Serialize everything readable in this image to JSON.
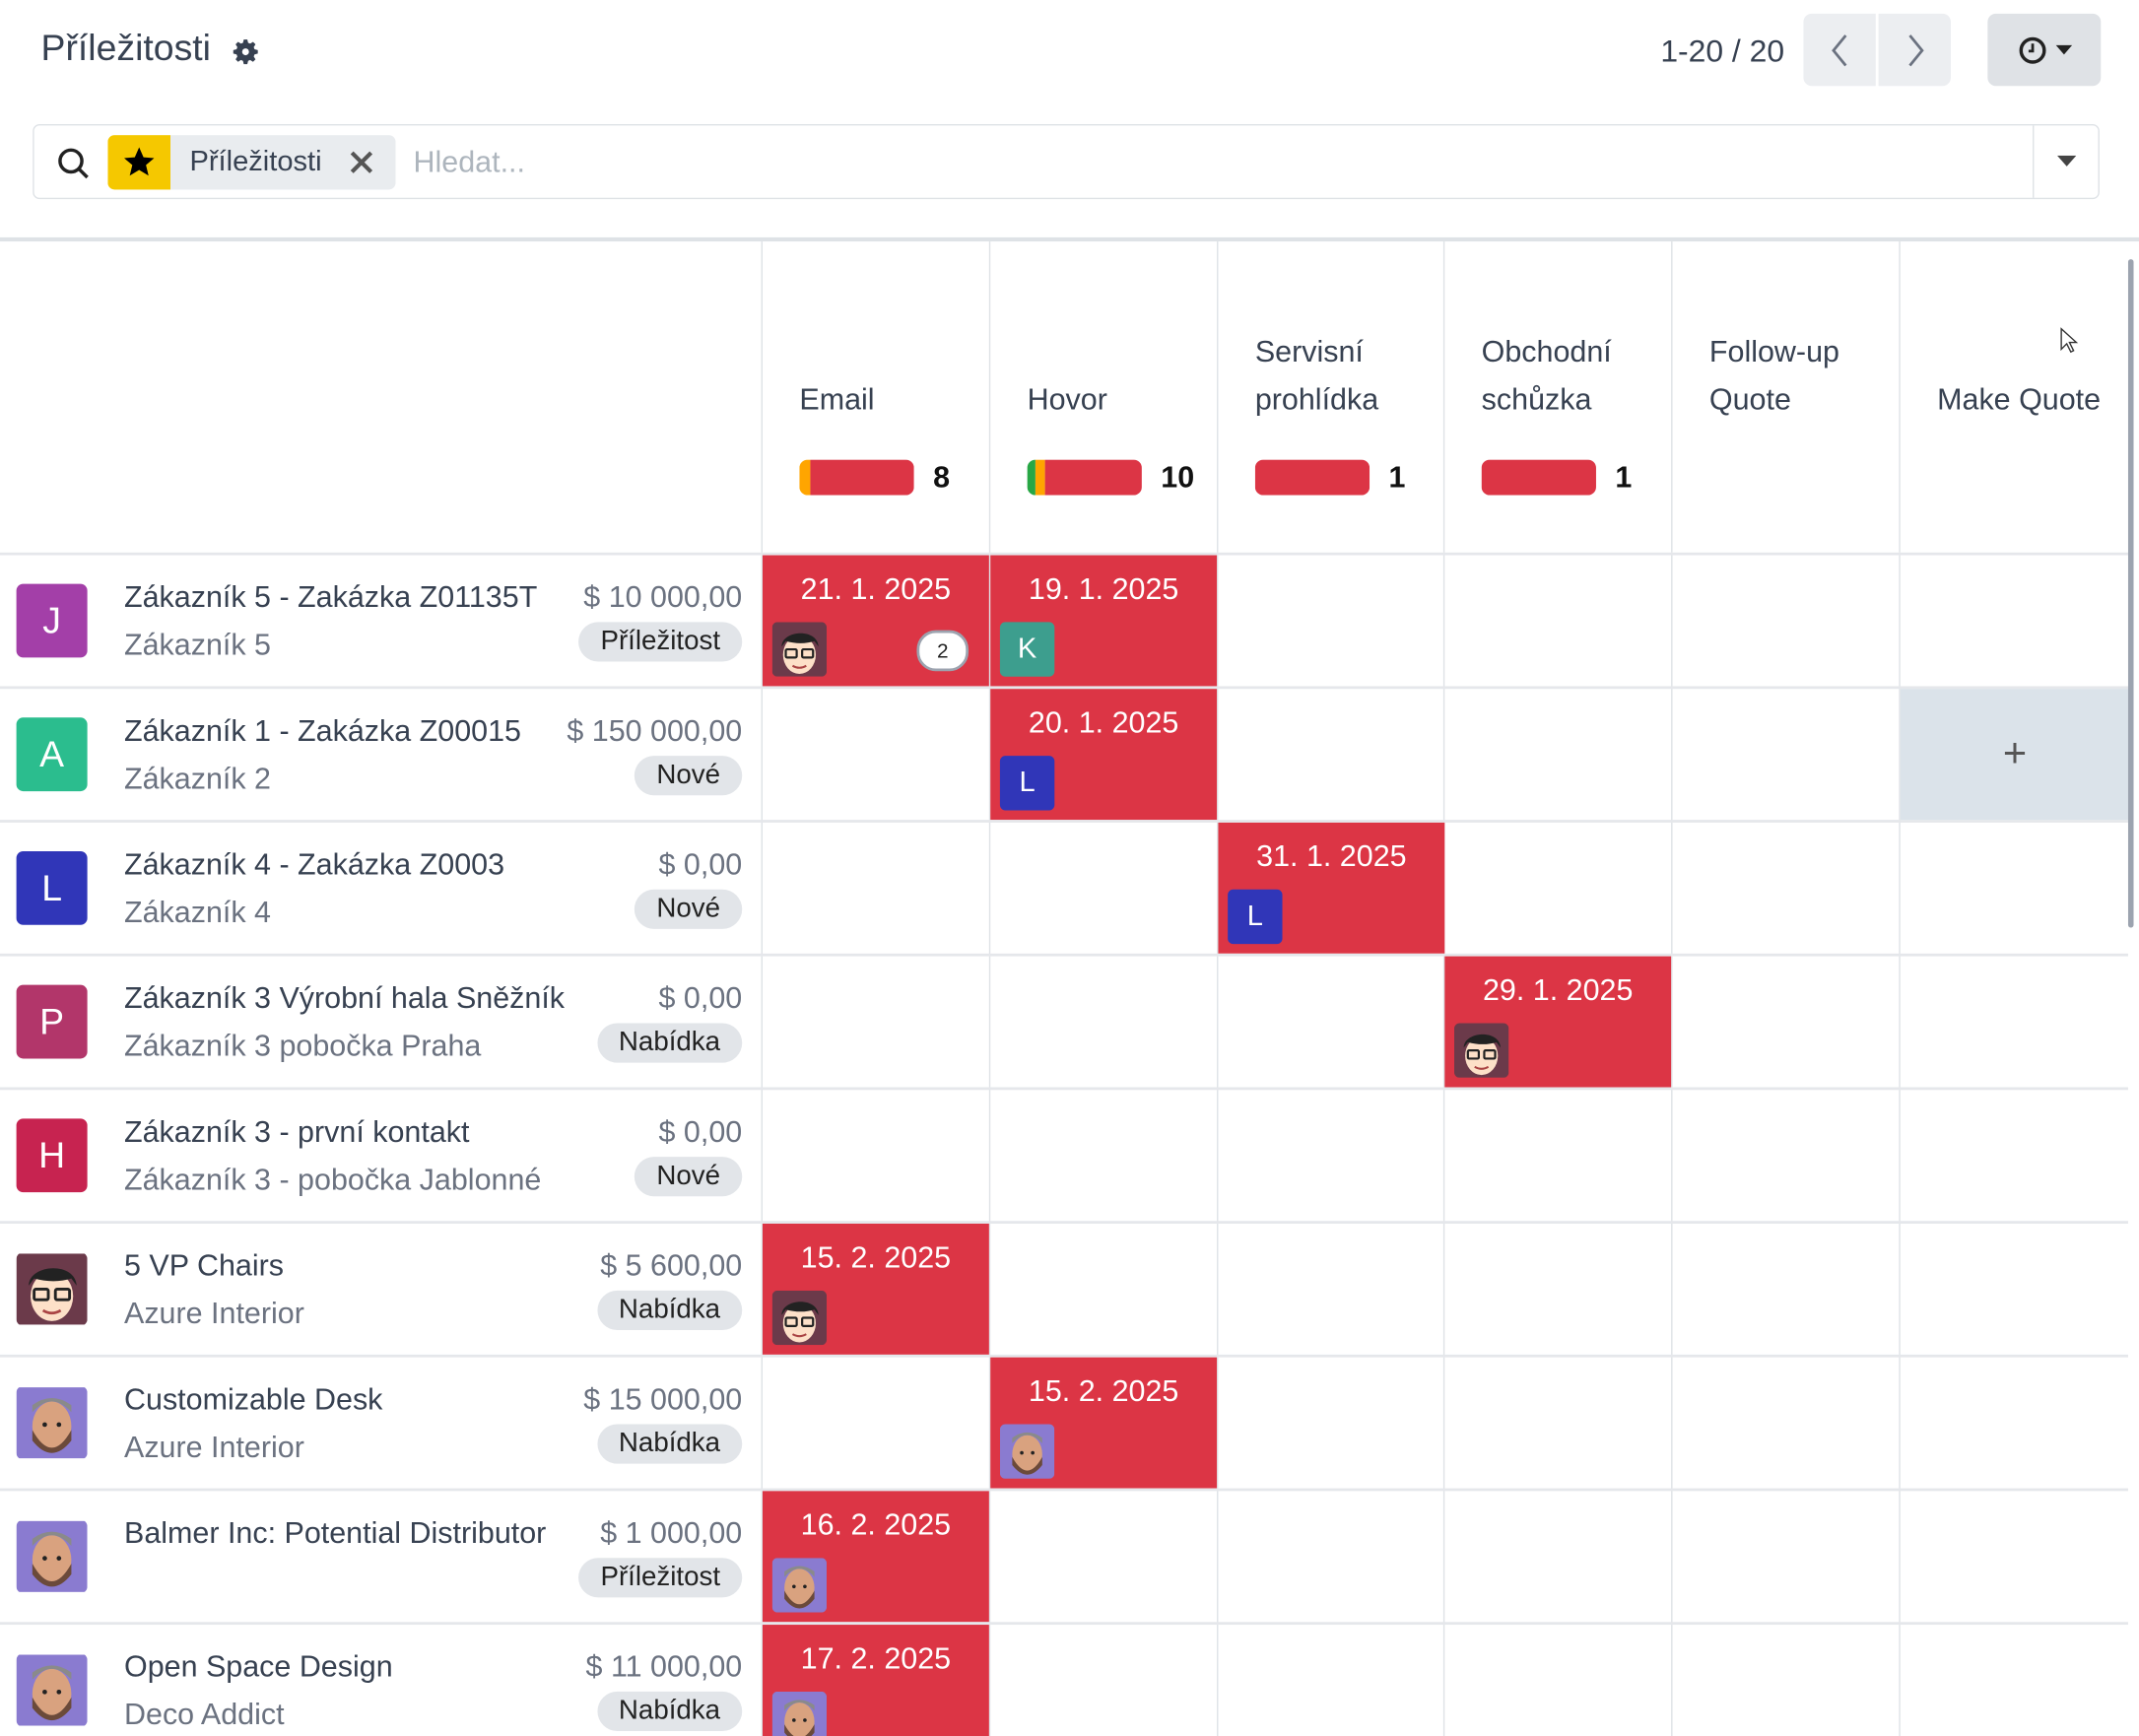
{
  "header": {
    "title": "Příležitosti",
    "pager": "1-20 / 20"
  },
  "search": {
    "facet_label": "Příležitosti",
    "placeholder": "Hledat..."
  },
  "columns": [
    {
      "label": "Email",
      "count": "8",
      "segments": [
        {
          "color": "#ffa500",
          "pct": 10
        },
        {
          "color": "#dc3545",
          "pct": 90
        }
      ]
    },
    {
      "label": "Hovor",
      "count": "10",
      "segments": [
        {
          "color": "#28a745",
          "pct": 7
        },
        {
          "color": "#ffa500",
          "pct": 8
        },
        {
          "color": "#dc3545",
          "pct": 85
        }
      ]
    },
    {
      "label": "Servisní prohlídka",
      "count": "1",
      "segments": [
        {
          "color": "#dc3545",
          "pct": 100
        }
      ]
    },
    {
      "label": "Obchodní schůzka",
      "count": "1",
      "segments": [
        {
          "color": "#dc3545",
          "pct": 100
        }
      ]
    },
    {
      "label": "Follow-up Quote",
      "count": "",
      "segments": []
    },
    {
      "label": "Make Quote",
      "count": "",
      "segments": []
    }
  ],
  "add_label": "+",
  "rows": [
    {
      "avatar": {
        "letter": "J",
        "color": "#a33fa8"
      },
      "name": "Zákazník 5 - Zakázka Z01135T",
      "sub": "Zákazník 5",
      "amount": "$ 10 000,00",
      "badge": "Příležitost",
      "cells": [
        {
          "col": 0,
          "date": "21. 1. 2025",
          "assignee": {
            "image": "glasses"
          },
          "count": "2"
        },
        {
          "col": 1,
          "date": "19. 1. 2025",
          "assignee": {
            "letter": "K",
            "color": "#3d9e8e"
          }
        }
      ]
    },
    {
      "avatar": {
        "letter": "A",
        "color": "#2bbd8e"
      },
      "name": "Zákazník 1 - Zakázka Z00015",
      "sub": "Zákazník 2",
      "amount": "$ 150 000,00",
      "badge": "Nové",
      "cells": [
        {
          "col": 1,
          "date": "20. 1. 2025",
          "assignee": {
            "letter": "L",
            "color": "#3036b8"
          }
        }
      ],
      "hover_col": 5
    },
    {
      "avatar": {
        "letter": "L",
        "color": "#3036b8"
      },
      "name": "Zákazník 4 - Zakázka Z0003",
      "sub": "Zákazník 4",
      "amount": "$ 0,00",
      "badge": "Nové",
      "cells": [
        {
          "col": 2,
          "date": "31. 1. 2025",
          "assignee": {
            "letter": "L",
            "color": "#3036b8"
          }
        }
      ]
    },
    {
      "avatar": {
        "letter": "P",
        "color": "#b2366a"
      },
      "name": "Zákazník 3 Výrobní hala Sněžník",
      "sub": "Zákazník 3 pobočka Praha",
      "amount": "$ 0,00",
      "badge": "Nabídka",
      "cells": [
        {
          "col": 3,
          "date": "29. 1. 2025",
          "assignee": {
            "image": "glasses"
          }
        }
      ]
    },
    {
      "avatar": {
        "letter": "H",
        "color": "#c72350"
      },
      "name": "Zákazník 3 - první kontakt",
      "sub": "Zákazník 3 - pobočka Jablonné",
      "amount": "$ 0,00",
      "badge": "Nové",
      "cells": []
    },
    {
      "avatar": {
        "image": "glasses"
      },
      "name": "5 VP Chairs",
      "sub": "Azure Interior",
      "amount": "$ 5 600,00",
      "badge": "Nabídka",
      "cells": [
        {
          "col": 0,
          "date": "15. 2. 2025",
          "assignee": {
            "image": "glasses"
          }
        }
      ]
    },
    {
      "avatar": {
        "image": "beard"
      },
      "name": "Customizable Desk",
      "sub": "Azure Interior",
      "amount": "$ 15 000,00",
      "badge": "Nabídka",
      "cells": [
        {
          "col": 1,
          "date": "15. 2. 2025",
          "assignee": {
            "image": "beard"
          }
        }
      ]
    },
    {
      "avatar": {
        "image": "beard"
      },
      "name": "Balmer Inc: Potential Distributor",
      "sub": "",
      "amount": "$ 1 000,00",
      "badge": "Příležitost",
      "cells": [
        {
          "col": 0,
          "date": "16. 2. 2025",
          "assignee": {
            "image": "beard"
          }
        }
      ]
    },
    {
      "avatar": {
        "image": "beard"
      },
      "name": "Open Space Design",
      "sub": "Deco Addict",
      "amount": "$ 11 000,00",
      "badge": "Nabídka",
      "cells": [
        {
          "col": 0,
          "date": "17. 2. 2025",
          "assignee": {
            "image": "beard"
          }
        }
      ]
    }
  ]
}
